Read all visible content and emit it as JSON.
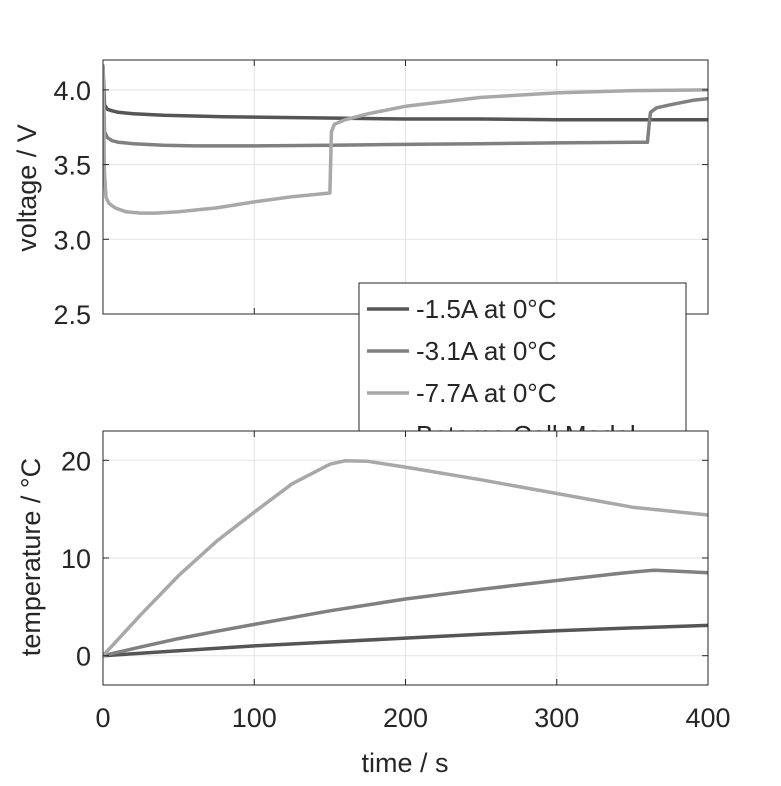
{
  "chart_data": [
    {
      "type": "line",
      "title": "",
      "xlabel": "",
      "ylabel": "voltage / V",
      "xlim": [
        0,
        400
      ],
      "ylim": [
        2.5,
        4.2
      ],
      "xticks": [
        0,
        100,
        200,
        300,
        400
      ],
      "yticks": [
        2.5,
        3.0,
        3.5,
        4.0
      ],
      "ytick_labels": [
        "2.5",
        "3.0",
        "3.5",
        "4.0"
      ],
      "show_xtick_labels": false,
      "grid": true,
      "series": [
        {
          "name": "-1.5A at 0°C",
          "color": "#555555",
          "x": [
            0,
            1,
            3,
            6,
            10,
            20,
            40,
            80,
            120,
            160,
            200,
            250,
            300,
            350,
            400
          ],
          "y": [
            4.16,
            3.9,
            3.87,
            3.86,
            3.85,
            3.84,
            3.83,
            3.82,
            3.815,
            3.81,
            3.805,
            3.805,
            3.8,
            3.8,
            3.8
          ]
        },
        {
          "name": "-3.1A at 0°C",
          "color": "#808080",
          "x": [
            0,
            1,
            3,
            6,
            10,
            20,
            40,
            60,
            100,
            150,
            200,
            250,
            300,
            360,
            361,
            362,
            366,
            375,
            390,
            400
          ],
          "y": [
            4.16,
            3.72,
            3.68,
            3.66,
            3.65,
            3.64,
            3.63,
            3.625,
            3.625,
            3.63,
            3.635,
            3.64,
            3.645,
            3.65,
            3.76,
            3.85,
            3.88,
            3.9,
            3.93,
            3.94
          ]
        },
        {
          "name": "-7.7A at 0°C",
          "color": "#a8a8a8",
          "x": [
            0,
            1,
            2,
            4,
            8,
            15,
            25,
            35,
            50,
            75,
            100,
            125,
            150,
            150.5,
            151,
            153,
            160,
            175,
            200,
            250,
            300,
            350,
            400
          ],
          "y": [
            4.16,
            3.45,
            3.28,
            3.24,
            3.21,
            3.185,
            3.175,
            3.175,
            3.185,
            3.21,
            3.25,
            3.285,
            3.31,
            3.5,
            3.72,
            3.77,
            3.8,
            3.84,
            3.89,
            3.95,
            3.98,
            3.995,
            4.0
          ]
        },
        {
          "name": "Batemo Cell Model",
          "color": "#e0681e",
          "dashed": true,
          "x": [],
          "y": []
        }
      ],
      "legend": {
        "placement": "bottom-right",
        "entries": [
          "-1.5A at 0°C",
          "-3.1A at 0°C",
          "-7.7A at 0°C",
          "Batemo Cell Model"
        ]
      }
    },
    {
      "type": "line",
      "title": "",
      "xlabel": "time / s",
      "ylabel": "temperature / °C",
      "xlim": [
        0,
        400
      ],
      "ylim": [
        -3,
        23
      ],
      "xticks": [
        0,
        100,
        200,
        300,
        400
      ],
      "yticks": [
        0,
        10,
        20
      ],
      "ytick_labels": [
        "0",
        "10",
        "20"
      ],
      "show_xtick_labels": true,
      "grid": true,
      "series": [
        {
          "name": "-1.5A at 0°C",
          "color": "#555555",
          "x": [
            0,
            50,
            100,
            150,
            200,
            250,
            300,
            350,
            400
          ],
          "y": [
            0,
            0.5,
            1.0,
            1.4,
            1.8,
            2.2,
            2.55,
            2.85,
            3.1
          ]
        },
        {
          "name": "-3.1A at 0°C",
          "color": "#808080",
          "x": [
            0,
            25,
            50,
            75,
            100,
            150,
            200,
            250,
            300,
            340,
            360,
            365,
            380,
            400
          ],
          "y": [
            0,
            0.9,
            1.75,
            2.5,
            3.2,
            4.6,
            5.8,
            6.8,
            7.7,
            8.4,
            8.7,
            8.75,
            8.65,
            8.5
          ]
        },
        {
          "name": "-7.7A at 0°C",
          "color": "#a8a8a8",
          "x": [
            0,
            25,
            50,
            75,
            100,
            125,
            150,
            160,
            175,
            200,
            250,
            300,
            350,
            400
          ],
          "y": [
            0,
            4.2,
            8.2,
            11.7,
            14.7,
            17.6,
            19.6,
            19.95,
            19.9,
            19.3,
            18.0,
            16.6,
            15.2,
            14.4
          ]
        }
      ]
    }
  ]
}
